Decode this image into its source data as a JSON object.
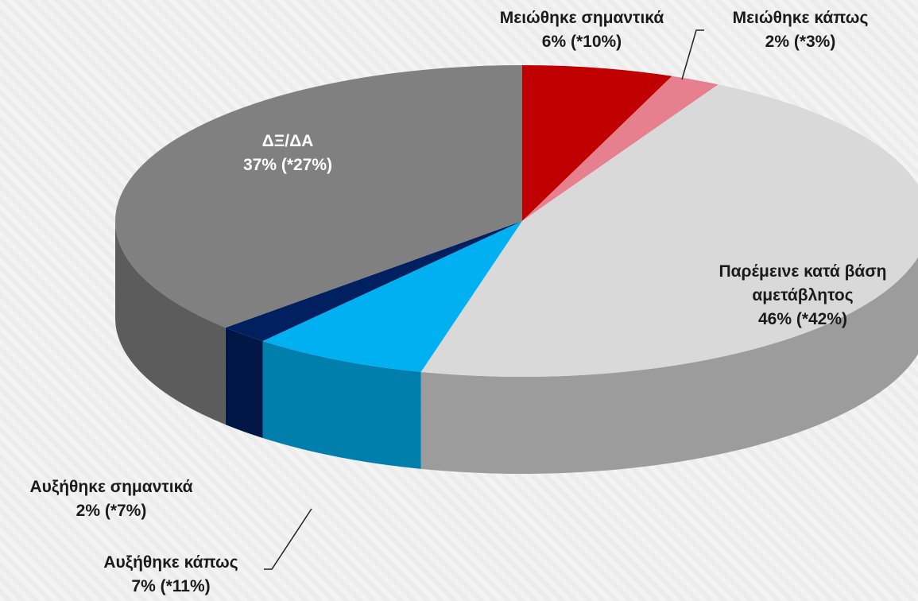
{
  "chart_data": {
    "type": "pie",
    "categories": [
      "Μειώθηκε σημαντικά",
      "Μειώθηκε κάπως",
      "Παρέμεινε κατά βάση αμετάβλητος",
      "Αυξήθηκε κάπως",
      "Αυξήθηκε σημαντικά",
      "ΔΞ/ΔΑ"
    ],
    "values": [
      6,
      2,
      46,
      7,
      2,
      37
    ],
    "value_labels": [
      "6% (*10%)",
      "2% (*3%)",
      "46% (*42%)",
      "7% (*11%)",
      "2% (*7%)",
      "37% (*27%)"
    ],
    "colors": [
      "#c00000",
      "#e6808f",
      "#d9d9d9",
      "#00b0f0",
      "#002060",
      "#808080"
    ]
  }
}
